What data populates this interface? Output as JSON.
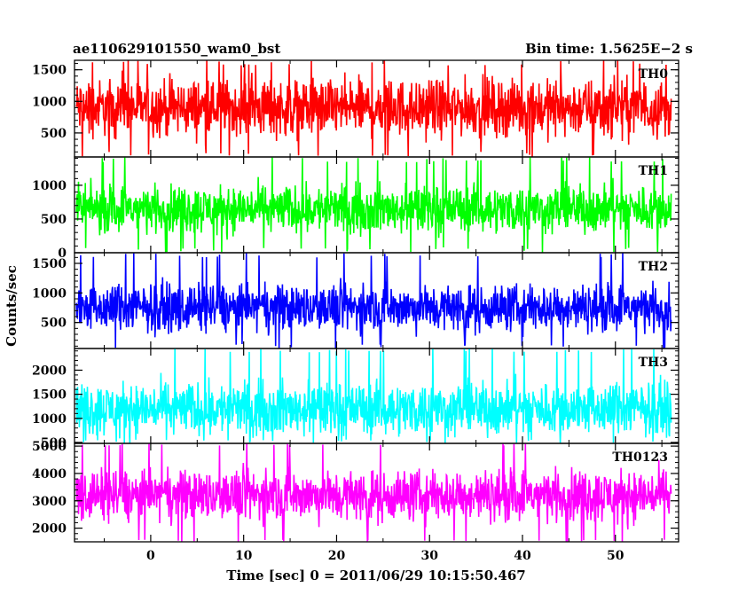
{
  "header": {
    "left": "ae110629101550_wam0_bst",
    "right": "Bin time: 1.5625E−2 s"
  },
  "chart_data": {
    "type": "line",
    "x_range": [
      -8.2,
      56.8
    ],
    "x_ticks": [
      0,
      10,
      20,
      30,
      40,
      50
    ],
    "x_tick_labels": [
      "0",
      "10",
      "20",
      "30",
      "40",
      "50"
    ],
    "xlabel": "Time [sec] 0 = 2011/06/29 10:15:50.467",
    "ylabel": "Counts/sec",
    "data_x_start": -8.0,
    "data_x_end": 56.0,
    "grid": false,
    "panels": [
      {
        "label": "TH0",
        "color": "#ff0000",
        "ylim": [
          120,
          1650
        ],
        "y_ticks": [
          500,
          1000,
          1500
        ],
        "y_tick_labels": [
          "500",
          "1000",
          "1500"
        ],
        "series_summary": {
          "mean": 900,
          "typical_min": 250,
          "typical_max": 1500,
          "min": 120,
          "max": 1650
        }
      },
      {
        "label": "TH1",
        "color": "#00ff00",
        "ylim": [
          0,
          1420
        ],
        "y_ticks": [
          0,
          500,
          1000
        ],
        "y_tick_labels": [
          "0",
          "500",
          "1000"
        ],
        "series_summary": {
          "mean": 650,
          "typical_min": 150,
          "typical_max": 1100,
          "min": 0,
          "max": 1420
        }
      },
      {
        "label": "TH2",
        "color": "#0000ff",
        "ylim": [
          60,
          1680
        ],
        "y_ticks": [
          500,
          1000,
          1500
        ],
        "y_tick_labels": [
          "500",
          "1000",
          "1500"
        ],
        "series_summary": {
          "mean": 750,
          "typical_min": 250,
          "typical_max": 1350,
          "min": 60,
          "max": 1680
        }
      },
      {
        "label": "TH3",
        "color": "#00ffff",
        "ylim": [
          480,
          2450
        ],
        "y_ticks": [
          500,
          1000,
          1500,
          2000
        ],
        "y_tick_labels": [
          "500",
          "1000",
          "1500",
          "2000"
        ],
        "series_summary": {
          "mean": 1200,
          "typical_min": 600,
          "typical_max": 2100,
          "min": 480,
          "max": 2450
        }
      },
      {
        "label": "TH0123",
        "color": "#ff00ff",
        "ylim": [
          1500,
          5100
        ],
        "y_ticks": [
          2000,
          3000,
          4000,
          5000
        ],
        "y_tick_labels": [
          "2000",
          "3000",
          "4000",
          "5000"
        ],
        "series_summary": {
          "mean": 3200,
          "typical_min": 2000,
          "typical_max": 4600,
          "min": 1500,
          "max": 5100
        }
      }
    ]
  }
}
